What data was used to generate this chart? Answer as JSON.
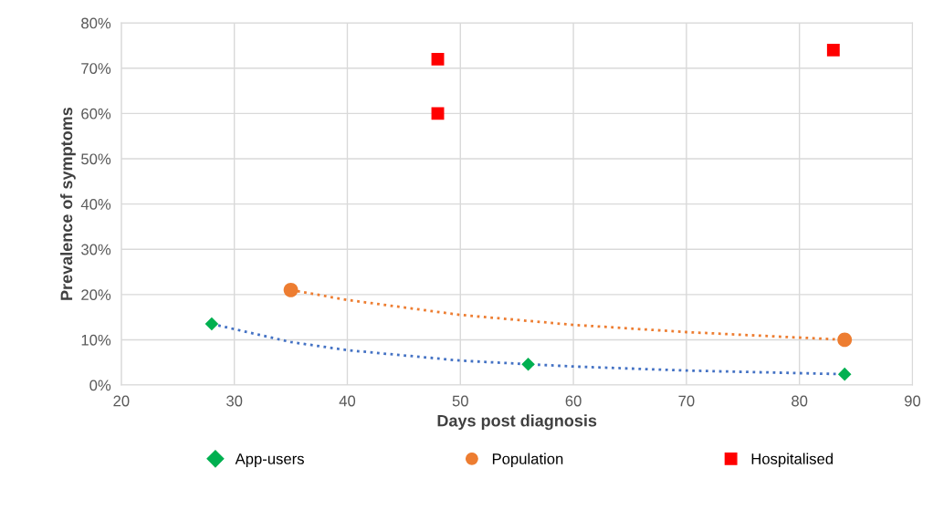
{
  "chart_data": {
    "type": "scatter",
    "xlabel": "Days post diagnosis",
    "ylabel": "Prevalence of symptoms",
    "xlim": [
      20,
      90
    ],
    "xticks": [
      20,
      30,
      40,
      50,
      60,
      70,
      80,
      90
    ],
    "ylim": [
      0,
      80
    ],
    "yticks": [
      {
        "value": 0,
        "label": "0%"
      },
      {
        "value": 10,
        "label": "10%"
      },
      {
        "value": 20,
        "label": "20%"
      },
      {
        "value": 30,
        "label": "30%"
      },
      {
        "value": 40,
        "label": "40%"
      },
      {
        "value": 50,
        "label": "50%"
      },
      {
        "value": 60,
        "label": "60%"
      },
      {
        "value": 70,
        "label": "70%"
      },
      {
        "value": 80,
        "label": "80%"
      }
    ],
    "grid": true,
    "legend": "bottom",
    "series": [
      {
        "name": "App-users",
        "color": "#00b050",
        "marker": "diamond",
        "x": [
          28,
          56,
          84
        ],
        "values": [
          13.5,
          4.6,
          2.4
        ]
      },
      {
        "name": "Population",
        "color": "#ed7d31",
        "marker": "circle",
        "x": [
          35,
          84
        ],
        "values": [
          21,
          10
        ]
      },
      {
        "name": "Hospitalised",
        "color": "#ff0000",
        "marker": "square",
        "x": [
          48,
          48,
          83
        ],
        "values": [
          72,
          60,
          74
        ]
      },
      {
        "type": "line",
        "color": "#4472c4",
        "line_style": "dotted",
        "x": [
          28,
          35,
          40,
          50,
          56,
          60,
          70,
          84
        ],
        "values": [
          13.5,
          9.5,
          7.7,
          5.4,
          4.6,
          4.1,
          3.2,
          2.4
        ]
      },
      {
        "type": "line",
        "color": "#ed7d31",
        "line_style": "dotted",
        "x": [
          35,
          40,
          50,
          60,
          70,
          84
        ],
        "values": [
          21,
          18.8,
          15.5,
          13.3,
          11.7,
          10
        ]
      }
    ]
  }
}
